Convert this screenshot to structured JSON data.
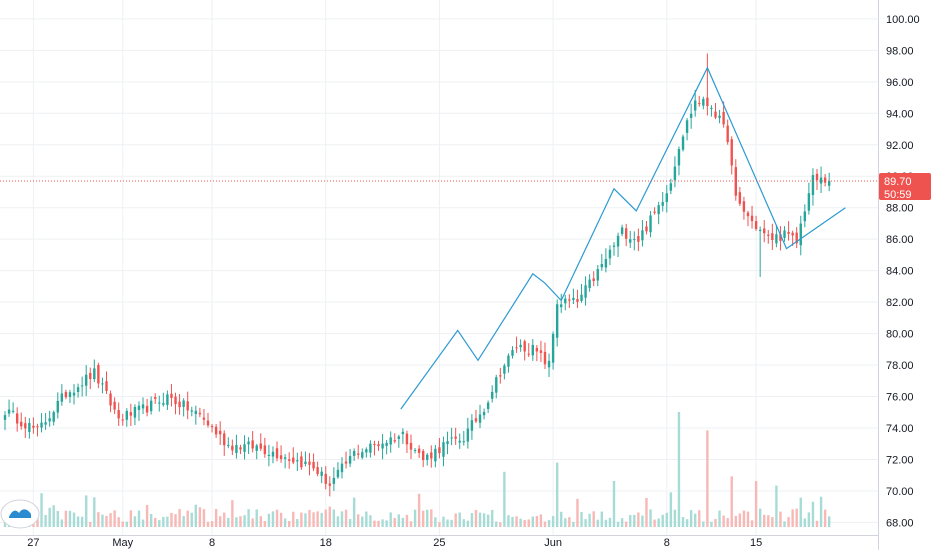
{
  "colors": {
    "up": "#26a69a",
    "down": "#ef5350",
    "vol_up": "#a7dcd6",
    "vol_down": "#f7b8b6",
    "grid": "#eef0f3",
    "axis_border": "#d1d4dc",
    "trendline": "#2b9ad1",
    "last_price": "#ef5350",
    "text": "#131722"
  },
  "chart_data": {
    "type": "candlestick",
    "y_axis": {
      "min": 67.2,
      "max": 101.2,
      "ticks": [
        "68.00",
        "70.00",
        "72.00",
        "74.00",
        "76.00",
        "78.00",
        "80.00",
        "82.00",
        "84.00",
        "86.00",
        "88.00",
        "90.00",
        "92.00",
        "94.00",
        "96.00",
        "98.00",
        "100.00"
      ]
    },
    "x_axis": {
      "ticks": [
        {
          "label": "27",
          "bar": 7
        },
        {
          "label": "May",
          "bar": 29
        },
        {
          "label": "8",
          "bar": 51
        },
        {
          "label": "18",
          "bar": 79
        },
        {
          "label": "25",
          "bar": 107
        },
        {
          "label": "Jun",
          "bar": 135
        },
        {
          "label": "8",
          "bar": 163
        },
        {
          "label": "15",
          "bar": 185
        }
      ]
    },
    "last_price": {
      "value": 89.7,
      "label": "89.70",
      "countdown": "50:59"
    },
    "anchors": [
      [
        0,
        75.1
      ],
      [
        8,
        73.8
      ],
      [
        15,
        76.2
      ],
      [
        22,
        77.5
      ],
      [
        28,
        74.6
      ],
      [
        35,
        75.3
      ],
      [
        40,
        76.0
      ],
      [
        48,
        74.8
      ],
      [
        55,
        72.9
      ],
      [
        62,
        72.8
      ],
      [
        70,
        72.1
      ],
      [
        76,
        71.5
      ],
      [
        80,
        70.4
      ],
      [
        86,
        72.4
      ],
      [
        93,
        73.1
      ],
      [
        98,
        73.6
      ],
      [
        103,
        72.0
      ],
      [
        108,
        72.9
      ],
      [
        113,
        73.4
      ],
      [
        118,
        75.3
      ],
      [
        122,
        77.6
      ],
      [
        126,
        79.2
      ],
      [
        130,
        79.0
      ],
      [
        134,
        78.0
      ],
      [
        136,
        82.0
      ],
      [
        141,
        82.0
      ],
      [
        147,
        84.3
      ],
      [
        152,
        86.5
      ],
      [
        156,
        86.0
      ],
      [
        160,
        87.6
      ],
      [
        164,
        89.7
      ],
      [
        166,
        92.0
      ],
      [
        170,
        94.8
      ],
      [
        174,
        94.5
      ],
      [
        178,
        92.5
      ],
      [
        180,
        88.5
      ],
      [
        184,
        87.1
      ],
      [
        188,
        86.0
      ],
      [
        192,
        86.3
      ],
      [
        195,
        85.8
      ],
      [
        197,
        88.0
      ],
      [
        199,
        89.8
      ],
      [
        203,
        89.7
      ]
    ],
    "spikes": [
      {
        "bar": 20,
        "high": 78.0
      },
      {
        "bar": 79,
        "low": 70.1
      },
      {
        "bar": 186,
        "low": 83.6
      },
      {
        "bar": 173,
        "high": 97.8
      }
    ],
    "volume_spikes": [
      {
        "bar": 123,
        "vol": 12
      },
      {
        "bar": 136,
        "vol": 14
      },
      {
        "bar": 150,
        "vol": 10
      },
      {
        "bar": 166,
        "vol": 25
      },
      {
        "bar": 173,
        "vol": 21
      },
      {
        "bar": 179,
        "vol": 11
      },
      {
        "bar": 185,
        "vol": 10
      },
      {
        "bar": 190,
        "vol": 9
      }
    ],
    "drawings": [
      {
        "type": "polyline",
        "name": "pattern-line",
        "points": [
          [
            97.5,
            75.2
          ],
          [
            111.5,
            80.2
          ],
          [
            116.5,
            78.3
          ],
          [
            130,
            83.8
          ],
          [
            133,
            83.2
          ],
          [
            137,
            82.1
          ],
          [
            150,
            89.2
          ],
          [
            155.5,
            87.8
          ],
          [
            173,
            96.9
          ],
          [
            192.5,
            85.4
          ],
          [
            207,
            88.0
          ]
        ]
      }
    ]
  }
}
